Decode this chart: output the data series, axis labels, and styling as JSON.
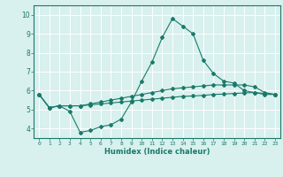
{
  "xlabel": "Humidex (Indice chaleur)",
  "ylabel": "",
  "x": [
    0,
    1,
    2,
    3,
    4,
    5,
    6,
    7,
    8,
    9,
    10,
    11,
    12,
    13,
    14,
    15,
    16,
    17,
    18,
    19,
    20,
    21,
    22,
    23
  ],
  "line1": [
    5.8,
    5.1,
    5.2,
    4.9,
    3.8,
    3.9,
    4.1,
    4.2,
    4.5,
    5.4,
    6.5,
    7.5,
    8.8,
    9.8,
    9.4,
    9.0,
    7.6,
    6.9,
    6.5,
    6.4,
    6.0,
    5.9,
    5.8,
    5.8
  ],
  "line2": [
    5.8,
    5.1,
    5.2,
    5.2,
    5.2,
    5.3,
    5.4,
    5.5,
    5.6,
    5.7,
    5.8,
    5.9,
    6.0,
    6.1,
    6.15,
    6.2,
    6.25,
    6.3,
    6.3,
    6.3,
    6.3,
    6.2,
    5.9,
    5.8
  ],
  "line3": [
    5.8,
    5.1,
    5.2,
    5.2,
    5.2,
    5.25,
    5.3,
    5.35,
    5.4,
    5.45,
    5.5,
    5.55,
    5.6,
    5.65,
    5.7,
    5.72,
    5.75,
    5.8,
    5.82,
    5.85,
    5.88,
    5.9,
    5.85,
    5.8
  ],
  "line_color": "#1a7a6a",
  "bg_color": "#d8f0ee",
  "grid_color": "#ffffff",
  "xlim": [
    -0.5,
    23.5
  ],
  "ylim": [
    3.5,
    10.5
  ],
  "yticks": [
    4,
    5,
    6,
    7,
    8,
    9,
    10
  ],
  "xticks": [
    0,
    1,
    2,
    3,
    4,
    5,
    6,
    7,
    8,
    9,
    10,
    11,
    12,
    13,
    14,
    15,
    16,
    17,
    18,
    19,
    20,
    21,
    22,
    23
  ],
  "marker": "D",
  "markersize": 2,
  "linewidth": 0.8
}
